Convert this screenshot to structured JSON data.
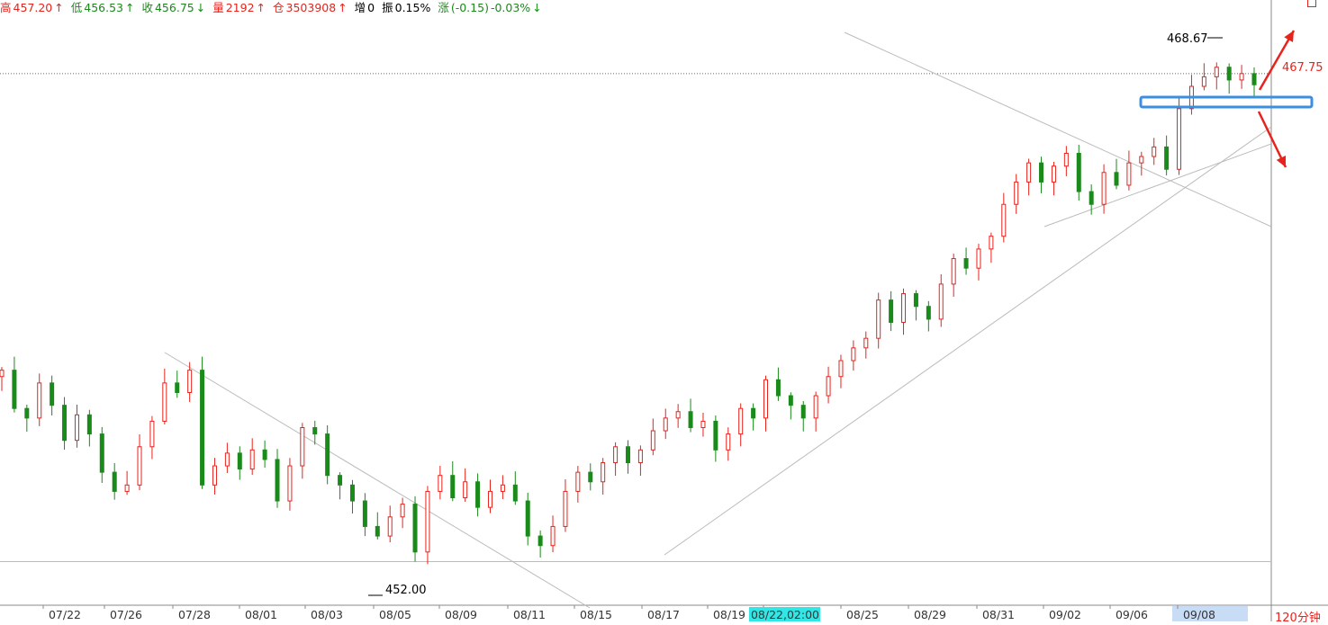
{
  "header": {
    "high_label": "高",
    "high_value": "457.20",
    "high_arrow": "↑",
    "low_label": "低",
    "low_value": "456.53",
    "low_arrow": "↑",
    "close_label": "收",
    "close_value": "456.75",
    "close_arrow": "↓",
    "volume_label": "量",
    "volume_value": "2192",
    "volume_arrow": "↑",
    "oi_label": "仓",
    "oi_value": "3503908",
    "oi_arrow": "↑",
    "increase_label": "增",
    "increase_value": "0",
    "amplitude_label": "振",
    "amplitude_value": "0.15%",
    "change_label": "涨",
    "change_value": "(-0.15)",
    "change_pct": "-0.03%",
    "change_arrow": "↓"
  },
  "timeframe_label": "120分钟",
  "colors": {
    "up": "#e8231c",
    "down": "#1a8a1a",
    "highlight_box": "#3a8fe0",
    "cursor_tag": "#33e6e6",
    "selected_range": "#c9dcf5"
  },
  "chart_data": {
    "type": "candlestick",
    "x_labels": [
      "07/22",
      "07/26",
      "07/28",
      "08/01",
      "08/03",
      "08/05",
      "08/09",
      "08/11",
      "08/15",
      "08/17",
      "08/19",
      "08/22,02:00",
      "08/25",
      "08/29",
      "08/31",
      "09/02",
      "09/06",
      "09/08"
    ],
    "cursor_label": "08/22,02:00",
    "ylim": [
      451.6,
      469.9
    ],
    "annotations": {
      "high": "468.67",
      "low": "452.00",
      "last_price": "467.75"
    },
    "reference_lines": [
      468.1,
      452.8
    ],
    "series_close_approx": [
      458.8,
      457.6,
      457.3,
      458.4,
      457.7,
      456.6,
      457.4,
      456.8,
      455.6,
      455.0,
      455.2,
      456.4,
      457.2,
      458.4,
      458.1,
      458.8,
      455.2,
      455.8,
      456.2,
      455.7,
      456.3,
      456.0,
      454.7,
      455.8,
      457.0,
      456.8,
      455.5,
      455.2,
      454.7,
      453.9,
      453.6,
      454.2,
      454.6,
      453.1,
      455.0,
      455.5,
      454.8,
      455.3,
      454.5,
      455.0,
      455.2,
      454.7,
      453.6,
      453.3,
      453.9,
      455.0,
      455.6,
      455.3,
      455.9,
      456.4,
      455.9,
      456.3,
      456.9,
      457.3,
      457.5,
      457.0,
      457.2,
      456.3,
      456.8,
      457.6,
      457.3,
      458.5,
      458.0,
      457.7,
      457.3,
      458.0,
      458.6,
      459.1,
      459.5,
      459.8,
      461.0,
      460.3,
      461.2,
      460.8,
      460.4,
      461.5,
      462.3,
      462.0,
      462.6,
      463.0,
      464.0,
      464.7,
      465.3,
      464.7,
      465.2,
      465.6,
      464.4,
      464.0,
      465.0,
      464.6,
      465.3,
      465.5,
      465.8,
      465.1,
      467.0,
      467.7,
      468.0,
      468.3,
      467.9,
      468.1,
      467.75
    ],
    "description": "Candlestick price series with a downtrend line from 07/28 to 08/15, an uptrend support line from 08/17 to 09/08 and converging triangle lines near 09/02-09/06"
  }
}
